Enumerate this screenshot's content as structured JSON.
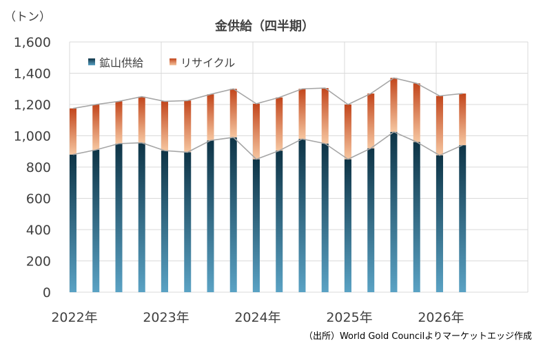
{
  "chart_data": {
    "type": "bar",
    "stacked": true,
    "title": "金供給（四半期）",
    "unit_label": "（トン）",
    "source_note": "（出所）World Gold Councilよりマーケットエッジ作成",
    "ylim": [
      0,
      1600
    ],
    "ytick_values": [
      0,
      200,
      400,
      600,
      800,
      1000,
      1200,
      1400,
      1600
    ],
    "ytick_labels": [
      "0",
      "200",
      "400",
      "600",
      "800",
      "1,000",
      "1,200",
      "1,400",
      "1,600"
    ],
    "xtick_labels": [
      "2022年",
      "2023年",
      "2024年",
      "2025年",
      "2026年"
    ],
    "xtick_quarters": [
      0,
      4,
      8,
      12,
      16
    ],
    "total_quarters": 20,
    "grid": true,
    "legend_position": "top-left",
    "colors": {
      "mining_top": "#0e3446",
      "mining_bottom": "#5aa2c4",
      "recycle_top": "#c2461c",
      "recycle_bottom": "#f6c6a0",
      "line": "#a6a6a6",
      "grid": "#d9d9d9"
    },
    "series": [
      {
        "name": "鉱山供給",
        "values": [
          880,
          910,
          950,
          955,
          905,
          895,
          970,
          990,
          850,
          905,
          980,
          950,
          850,
          920,
          1025,
          960,
          875,
          940
        ]
      },
      {
        "name": "リサイクル",
        "values": [
          295,
          290,
          270,
          295,
          315,
          330,
          295,
          310,
          355,
          340,
          320,
          355,
          350,
          350,
          345,
          375,
          380,
          330
        ]
      }
    ]
  }
}
